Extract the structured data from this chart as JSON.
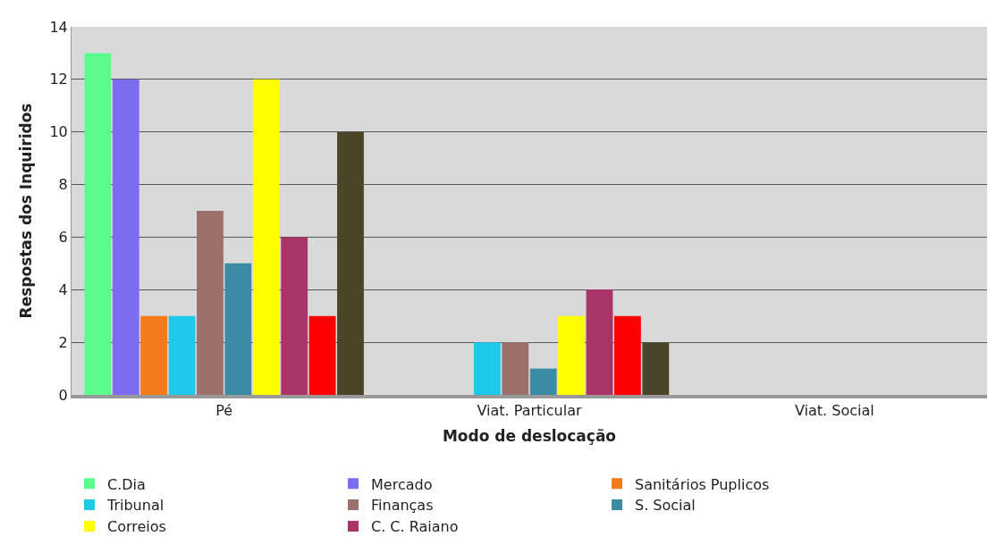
{
  "chart_data": {
    "type": "bar",
    "xlabel": "Modo de deslocação",
    "ylabel": "Respostas dos Inquiridos",
    "categories": [
      "Pé",
      "Viat. Particular",
      "Viat. Social"
    ],
    "series": [
      {
        "name": "C.Dia",
        "color": "#5cfc8c",
        "values": [
          13,
          0,
          0
        ]
      },
      {
        "name": "Mercado",
        "color": "#7b6cf0",
        "values": [
          12,
          0,
          0
        ]
      },
      {
        "name": "Sanitários Puplicos",
        "color": "#f47a1a",
        "values": [
          3,
          0,
          0
        ]
      },
      {
        "name": "Tribunal",
        "color": "#1ec8e8",
        "values": [
          3,
          2,
          0
        ]
      },
      {
        "name": "Finanças",
        "color": "#9c706c",
        "values": [
          7,
          2,
          0
        ]
      },
      {
        "name": "S. Social",
        "color": "#3a8ca4",
        "values": [
          5,
          1,
          0
        ]
      },
      {
        "name": "Correios",
        "color": "#ffff00",
        "values": [
          12,
          3,
          0
        ]
      },
      {
        "name": "C. C. Raiano",
        "color": "#a83468",
        "values": [
          6,
          4,
          0
        ]
      },
      {
        "color": "#ff0000",
        "values": [
          3,
          3,
          0
        ]
      },
      {
        "color": "#4a4428",
        "values": [
          10,
          2,
          0
        ]
      }
    ],
    "ylim": [
      0,
      14
    ],
    "yticks": [
      0,
      2,
      4,
      6,
      8,
      10,
      12,
      14
    ],
    "grid": "y",
    "legend": "bottom"
  }
}
